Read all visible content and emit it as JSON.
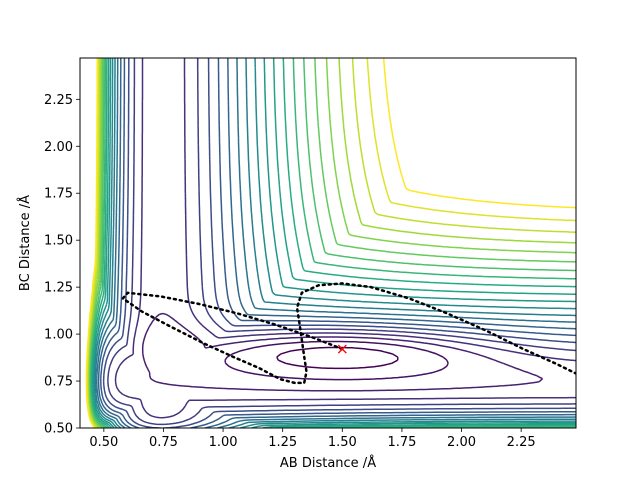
{
  "chart_data": {
    "type": "line",
    "subtype": "contour",
    "title": "",
    "xlabel": "AB Distance /Å",
    "ylabel": "BC Distance /Å",
    "xlim": [
      0.4,
      2.48
    ],
    "ylim": [
      0.5,
      2.47
    ],
    "x_ticks": [
      0.5,
      0.75,
      1.0,
      1.25,
      1.5,
      1.75,
      2.0,
      2.25
    ],
    "x_tick_labels": [
      "0.50",
      "0.75",
      "1.00",
      "1.25",
      "1.50",
      "1.75",
      "2.00",
      "2.25"
    ],
    "y_ticks": [
      0.5,
      0.75,
      1.0,
      1.25,
      1.5,
      1.75,
      2.0,
      2.25
    ],
    "y_tick_labels": [
      "0.50",
      "0.75",
      "1.00",
      "1.25",
      "1.50",
      "1.75",
      "2.00",
      "2.25"
    ],
    "grid": false,
    "colormap": "viridis",
    "colormap_colors": [
      "#440154",
      "#472c7a",
      "#3b518b",
      "#2c718e",
      "#21908d",
      "#27ad81",
      "#5cc863",
      "#aadc32",
      "#fde725"
    ],
    "contour_levels": 22,
    "contour_model": {
      "ab_equilibrium": 0.74,
      "bc_equilibrium": 0.74,
      "repulsive_wall_strength": 0.05,
      "valley_floor_min": [
        1.5,
        0.92
      ]
    },
    "trajectory": {
      "name": "trajectory",
      "color": "#000000",
      "style": "dotted",
      "points": [
        [
          1.5,
          0.92
        ],
        [
          1.38,
          0.98
        ],
        [
          1.22,
          1.05
        ],
        [
          1.06,
          1.11
        ],
        [
          0.9,
          1.16
        ],
        [
          0.74,
          1.2
        ],
        [
          0.6,
          1.22
        ],
        [
          0.58,
          1.19
        ],
        [
          0.66,
          1.12
        ],
        [
          0.78,
          1.04
        ],
        [
          0.92,
          0.95
        ],
        [
          1.04,
          0.88
        ],
        [
          1.15,
          0.82
        ],
        [
          1.24,
          0.76
        ],
        [
          1.3,
          0.74
        ],
        [
          1.34,
          0.74
        ],
        [
          1.35,
          0.8
        ],
        [
          1.34,
          0.88
        ],
        [
          1.33,
          0.97
        ],
        [
          1.32,
          1.06
        ],
        [
          1.31,
          1.14
        ],
        [
          1.33,
          1.22
        ],
        [
          1.4,
          1.26
        ],
        [
          1.5,
          1.27
        ],
        [
          1.62,
          1.25
        ],
        [
          1.78,
          1.19
        ],
        [
          1.94,
          1.11
        ],
        [
          2.1,
          1.02
        ],
        [
          2.26,
          0.92
        ],
        [
          2.4,
          0.84
        ],
        [
          2.48,
          0.79
        ]
      ]
    },
    "start_marker": {
      "name": "start",
      "symbol": "x",
      "color": "#ff0000",
      "x": 1.5,
      "y": 0.92
    }
  }
}
